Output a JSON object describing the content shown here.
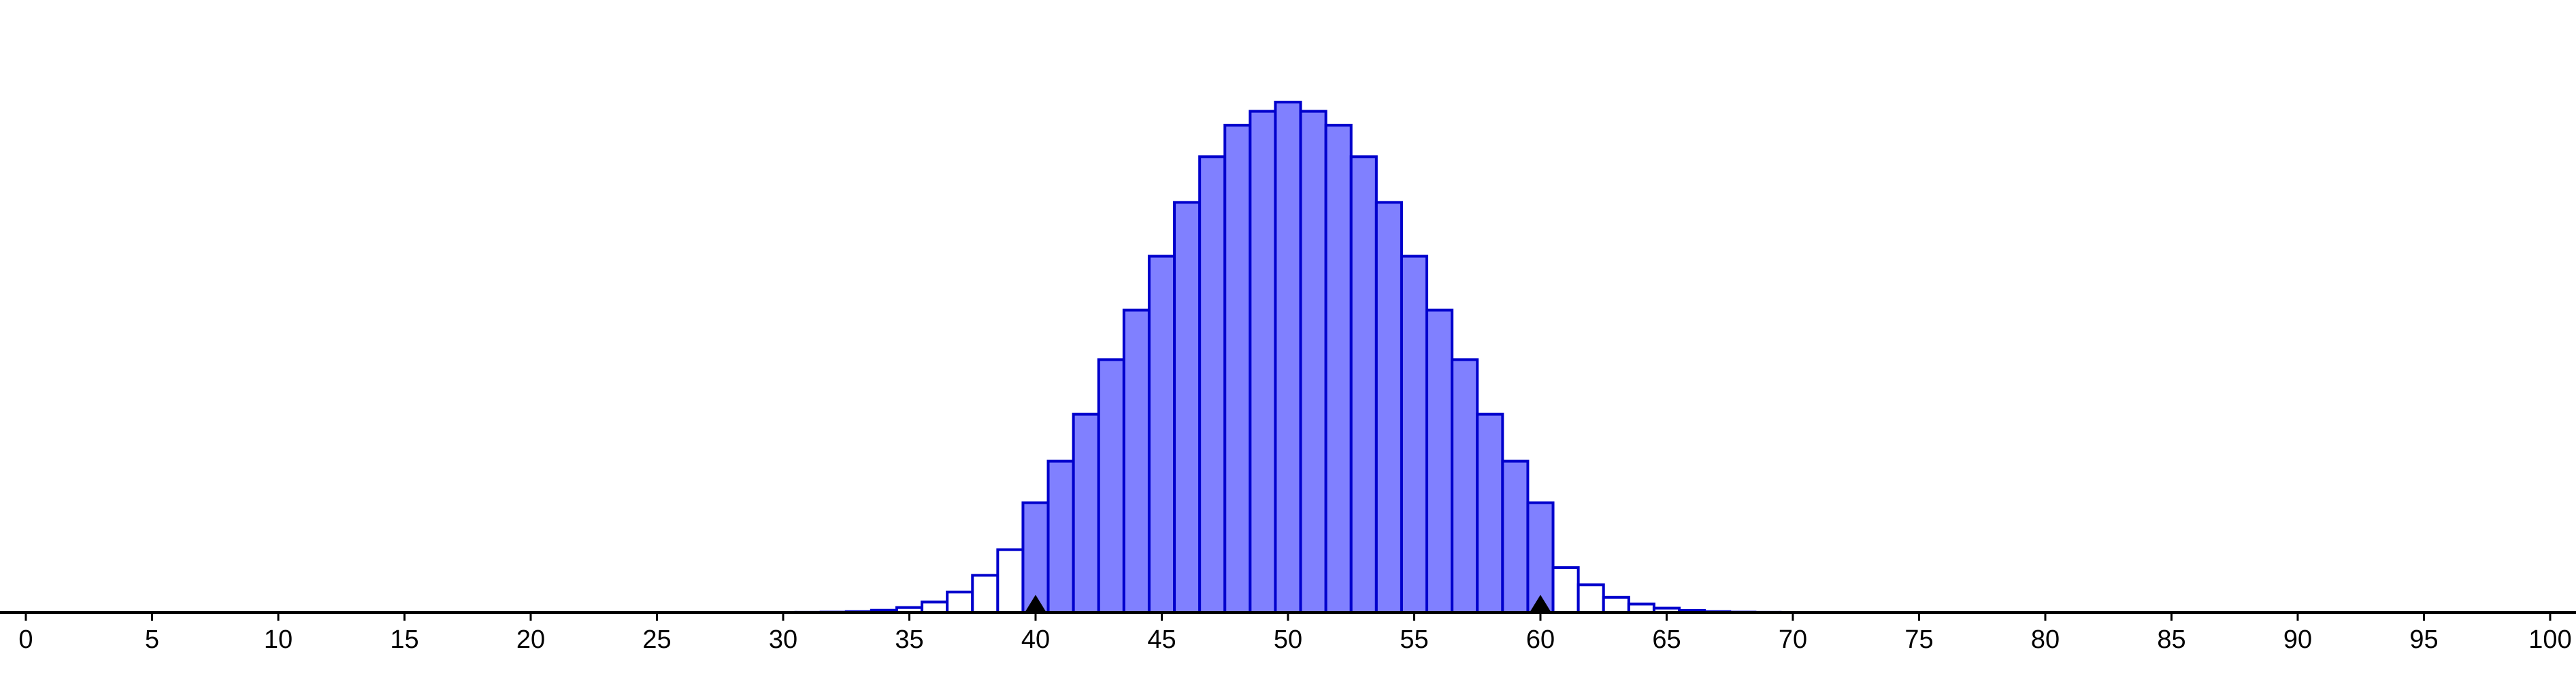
{
  "chart_data": {
    "type": "bar",
    "title": "",
    "xlabel": "",
    "ylabel": "",
    "xlim": [
      0,
      100
    ],
    "ylim": [
      0,
      0.08
    ],
    "x_ticks": [
      "0",
      "5",
      "10",
      "15",
      "20",
      "25",
      "30",
      "35",
      "40",
      "45",
      "50",
      "55",
      "60",
      "65",
      "70",
      "75",
      "80",
      "85",
      "90",
      "95",
      "100"
    ],
    "bin_width": 1,
    "highlight_range": [
      40,
      60
    ],
    "markers": [
      40,
      60
    ],
    "colors": {
      "bar_stroke": "#0000cc",
      "highlight_fill": "#8080ff",
      "plain_fill": "#ffffff",
      "axis": "#000000",
      "marker": "#000000"
    },
    "x": [
      30,
      31,
      32,
      33,
      34,
      35,
      36,
      37,
      38,
      39,
      40,
      41,
      42,
      43,
      44,
      45,
      46,
      47,
      48,
      49,
      50,
      51,
      52,
      53,
      54,
      55,
      56,
      57,
      58,
      59,
      60,
      61,
      62,
      63,
      64,
      65,
      66,
      67,
      68,
      69,
      70
    ],
    "values": [
      2e-05,
      5e-05,
      0.00014,
      0.00035,
      0.00087,
      0.00193,
      0.0041,
      0.008,
      0.0145,
      0.0245,
      0.0428,
      0.059,
      0.0773,
      0.0986,
      0.1179,
      0.1389,
      0.1599,
      0.1777,
      0.19,
      0.1954,
      0.199,
      0.1954,
      0.19,
      0.1777,
      0.1599,
      0.1389,
      0.1179,
      0.0986,
      0.0773,
      0.059,
      0.0428,
      0.0175,
      0.0108,
      0.0059,
      0.0033,
      0.0017,
      0.0008,
      0.00035,
      0.00014,
      5e-05,
      2e-05
    ]
  }
}
